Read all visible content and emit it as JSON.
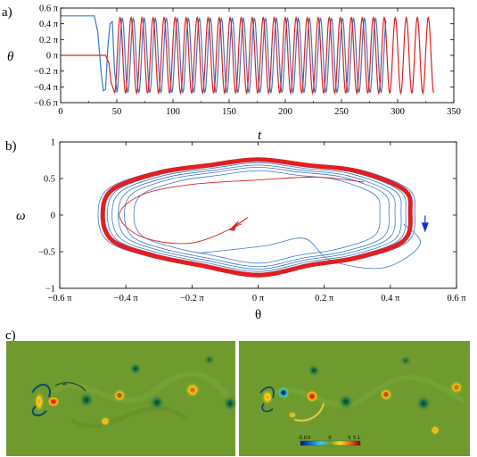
{
  "panels": {
    "a": {
      "label": "a)",
      "ylabel": "θ",
      "xlabel": "t",
      "x_ticks": [
        "0",
        "50",
        "100",
        "150",
        "200",
        "250",
        "300",
        "350"
      ],
      "y_ticks": [
        "0.6 π",
        "0.4 π",
        "0.2 π",
        "0 π",
        "−0.2 π",
        "−0.4 π",
        "−0.6 π"
      ]
    },
    "b": {
      "label": "b)",
      "ylabel": "ω",
      "xlabel": "θ",
      "x_ticks": [
        "−0.6 π",
        "−0.4 π",
        "−0.2 π",
        "0 π",
        "0.2 π",
        "0.4 π",
        "0.6 π"
      ],
      "y_ticks": [
        "1",
        "0.5",
        "0",
        "−0.5",
        "−1"
      ]
    },
    "c": {
      "label": "c)",
      "colorbar_ticks": [
        "-5.0",
        "-5",
        "0",
        "5",
        "5.1"
      ]
    }
  },
  "colors": {
    "blue": "#3a78c8",
    "red": "#e02020",
    "arrow_blue": "#1030e0",
    "arrow_red": "#e02020",
    "field": "#6f9a2e"
  },
  "chart_data": [
    {
      "type": "line",
      "title": "",
      "xlabel": "t",
      "ylabel": "θ",
      "xlim": [
        0,
        350
      ],
      "ylim": [
        -0.6,
        0.6
      ],
      "y_unit": "π",
      "series": [
        {
          "color": "#3a78c8",
          "segments": [
            {
              "kind": "constant",
              "x": [
                0,
                30
              ],
              "value": 0.5
            },
            {
              "kind": "transient",
              "points": [
                [
                  30,
                  0.5
                ],
                [
                  33,
                  0.3
                ],
                [
                  36,
                  -0.2
                ],
                [
                  38,
                  -0.45
                ],
                [
                  40,
                  -0.43
                ],
                [
                  42,
                  0.1
                ],
                [
                  44,
                  0.4
                ],
                [
                  46,
                  0.43
                ],
                [
                  48,
                  -0.2
                ],
                [
                  50,
                  -0.45
                ]
              ]
            },
            {
              "kind": "oscillation",
              "x_start": 50,
              "x_end": 290,
              "period": 9.8,
              "amplitude": 0.47
            }
          ]
        },
        {
          "color": "#e02020",
          "segments": [
            {
              "kind": "constant",
              "x": [
                0,
                40
              ],
              "value": 0.0
            },
            {
              "kind": "transient",
              "points": [
                [
                  40,
                  0.0
                ],
                [
                  43,
                  -0.1
                ],
                [
                  45,
                  -0.35
                ],
                [
                  48,
                  -0.47
                ]
              ]
            },
            {
              "kind": "oscillation",
              "x_start": 48,
              "x_end": 332,
              "period": 9.8,
              "amplitude": 0.48
            }
          ]
        }
      ]
    },
    {
      "type": "line",
      "title": "",
      "xlabel": "θ",
      "ylabel": "ω",
      "xlim": [
        -0.6,
        0.6
      ],
      "ylim": [
        -1,
        1
      ],
      "x_unit": "π",
      "series": [
        {
          "color": "#3a78c8",
          "description_points": [
            [
              0.5,
              -0.1
            ],
            [
              0.52,
              -0.4
            ],
            [
              0.4,
              -0.7
            ],
            [
              0.2,
              -0.6
            ],
            [
              0.12,
              -0.35
            ],
            [
              0.0,
              -0.5
            ],
            [
              -0.2,
              -0.55
            ]
          ]
        },
        {
          "color": "#e02020",
          "description_points": [
            [
              0.0,
              0.0
            ],
            [
              -0.1,
              0.05
            ],
            [
              -0.25,
              -0.38
            ],
            [
              -0.4,
              -0.1
            ],
            [
              -0.3,
              0.4
            ],
            [
              0.0,
              0.55
            ]
          ]
        }
      ],
      "arrows": [
        {
          "color": "#1030e0",
          "at": [
            0.51,
            -0.15
          ],
          "direction": "down"
        },
        {
          "color": "#e02020",
          "at": [
            -0.07,
            -0.15
          ],
          "direction": "down-left"
        }
      ]
    }
  ]
}
